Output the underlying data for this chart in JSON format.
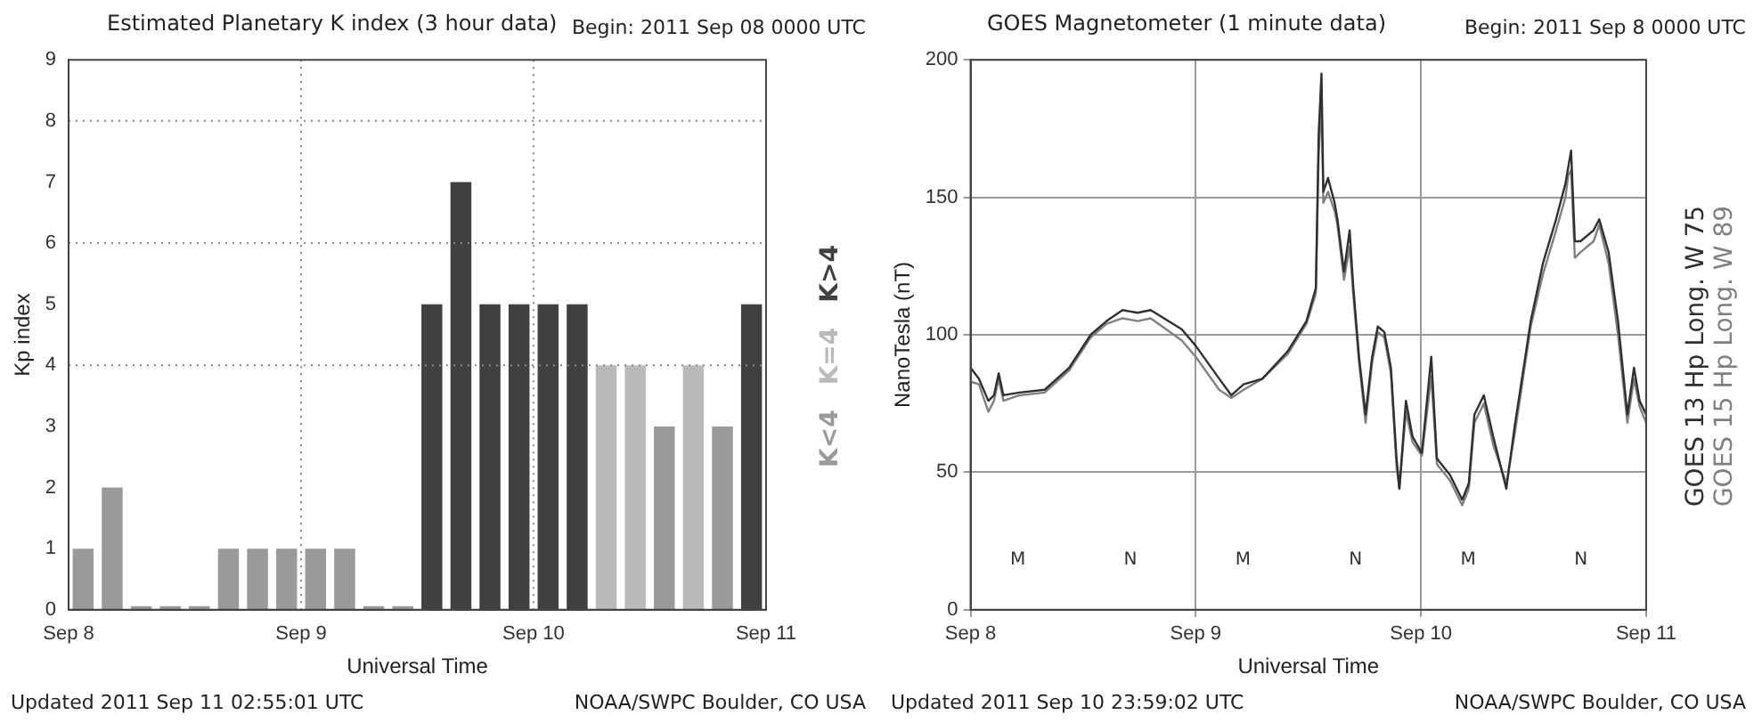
{
  "chart_data": [
    {
      "type": "bar",
      "title": "Estimated Planetary K index (3 hour data)",
      "subtitle": "Begin:  2011 Sep 08 0000 UTC",
      "xlabel": "Universal Time",
      "ylabel": "Kp index",
      "x": [
        "2011-09-08T01:30",
        "2011-09-08T04:30",
        "2011-09-08T07:30",
        "2011-09-08T10:30",
        "2011-09-08T13:30",
        "2011-09-08T16:30",
        "2011-09-08T19:30",
        "2011-09-08T22:30",
        "2011-09-09T01:30",
        "2011-09-09T04:30",
        "2011-09-09T07:30",
        "2011-09-09T10:30",
        "2011-09-09T13:30",
        "2011-09-09T16:30",
        "2011-09-09T19:30",
        "2011-09-09T22:30",
        "2011-09-10T01:30",
        "2011-09-10T04:30",
        "2011-09-10T07:30",
        "2011-09-10T10:30",
        "2011-09-10T13:30",
        "2011-09-10T16:30",
        "2011-09-10T19:30",
        "2011-09-10T22:30"
      ],
      "series": [
        {
          "name": "K<4",
          "color": "#9a9a9a",
          "values": [
            1,
            2,
            0,
            0,
            0,
            1,
            1,
            1,
            1,
            1,
            0,
            0,
            null,
            null,
            null,
            null,
            null,
            null,
            null,
            null,
            3,
            null,
            3,
            null
          ]
        },
        {
          "name": "K=4",
          "color": "#bababa",
          "values": [
            null,
            null,
            null,
            null,
            null,
            null,
            null,
            null,
            null,
            null,
            null,
            null,
            null,
            null,
            null,
            null,
            null,
            null,
            4,
            4,
            null,
            4,
            null,
            null
          ]
        },
        {
          "name": "K>4",
          "color": "#404040",
          "values": [
            null,
            null,
            null,
            null,
            null,
            null,
            null,
            null,
            null,
            null,
            null,
            null,
            5,
            7,
            5,
            5,
            5,
            5,
            null,
            null,
            null,
            null,
            null,
            5
          ]
        }
      ],
      "xlim": [
        "2011-09-08",
        "2011-09-11"
      ],
      "xticks": [
        {
          "value": "2011-09-08",
          "label": "Sep 8"
        },
        {
          "value": "2011-09-09",
          "label": "Sep 9"
        },
        {
          "value": "2011-09-10",
          "label": "Sep 10"
        },
        {
          "value": "2011-09-11",
          "label": "Sep 11"
        }
      ],
      "ylim": [
        0,
        9
      ],
      "yticks": [
        0,
        1,
        2,
        3,
        4,
        5,
        6,
        7,
        8,
        9
      ],
      "legend": "right",
      "ref_lines": [
        {
          "axis": "y",
          "value": 4,
          "color": "#888888",
          "line_style": "dotted"
        },
        {
          "axis": "y",
          "value": 6,
          "color": "#888888",
          "line_style": "dotted"
        },
        {
          "axis": "y",
          "value": 8,
          "color": "#888888",
          "line_style": "dotted"
        },
        {
          "axis": "x",
          "value": "2011-09-09",
          "color": "#888888",
          "line_style": "dotted"
        },
        {
          "axis": "x",
          "value": "2011-09-10",
          "color": "#888888",
          "line_style": "dotted"
        }
      ],
      "annotations": [
        "Updated 2011 Sep 11 02:55:01 UTC",
        "NOAA/SWPC Boulder, CO USA"
      ]
    },
    {
      "type": "line",
      "title": "GOES Magnetometer (1 minute data)",
      "subtitle": "Begin:  2011 Sep 8 0000 UTC",
      "xlabel": "Universal Time",
      "ylabel": "NanoTesla (nT)",
      "x": [
        "2011-09-08T00:00",
        "2011-09-08T00:54",
        "2011-09-08T01:54",
        "2011-09-08T02:30",
        "2011-09-08T03:00",
        "2011-09-08T03:30",
        "2011-09-08T05:12",
        "2011-09-08T07:54",
        "2011-09-08T10:30",
        "2011-09-08T12:48",
        "2011-09-08T14:30",
        "2011-09-08T16:12",
        "2011-09-08T17:48",
        "2011-09-08T19:12",
        "2011-09-08T22:30",
        "2011-09-09T00:00",
        "2011-09-09T02:30",
        "2011-09-09T03:48",
        "2011-09-09T05:06",
        "2011-09-09T07:06",
        "2011-09-09T09:48",
        "2011-09-09T11:48",
        "2011-09-09T12:48",
        "2011-09-09T13:06",
        "2011-09-09T13:24",
        "2011-09-09T13:36",
        "2011-09-09T14:06",
        "2011-09-09T14:48",
        "2011-09-09T15:06",
        "2011-09-09T15:48",
        "2011-09-09T16:24",
        "2011-09-09T16:48",
        "2011-09-09T17:24",
        "2011-09-09T18:06",
        "2011-09-09T18:48",
        "2011-09-09T19:24",
        "2011-09-09T20:06",
        "2011-09-09T20:48",
        "2011-09-09T21:24",
        "2011-09-09T21:42",
        "2011-09-09T22:24",
        "2011-09-09T23:06",
        "2011-09-10T00:06",
        "2011-09-10T01:06",
        "2011-09-10T01:42",
        "2011-09-10T03:06",
        "2011-09-10T04:24",
        "2011-09-10T05:06",
        "2011-09-10T05:42",
        "2011-09-10T06:42",
        "2011-09-10T07:42",
        "2011-09-10T09:06",
        "2011-09-10T10:00",
        "2011-09-10T11:42",
        "2011-09-10T13:00",
        "2011-09-10T14:24",
        "2011-09-10T15:24",
        "2011-09-10T15:42",
        "2011-09-10T16:00",
        "2011-09-10T16:24",
        "2011-09-10T17:00",
        "2011-09-10T18:24",
        "2011-09-10T19:00",
        "2011-09-10T20:00",
        "2011-09-10T21:00",
        "2011-09-10T22:00",
        "2011-09-10T22:42",
        "2011-09-10T23:18",
        "2011-09-11T00:00"
      ],
      "series": [
        {
          "name": "GOES 13 Hp  Long. W 75",
          "color": "#303030",
          "values": [
            88,
            84,
            76,
            78,
            86,
            78,
            79,
            80,
            88,
            100,
            105,
            109,
            108,
            109,
            102,
            96,
            84,
            78,
            82,
            84,
            94,
            105,
            117,
            173,
            195,
            152,
            157,
            148,
            142,
            123,
            138,
            117,
            92,
            71,
            92,
            103,
            101,
            88,
            55,
            44,
            76,
            63,
            57,
            92,
            55,
            49,
            40,
            46,
            71,
            78,
            63,
            44,
            67,
            105,
            126,
            142,
            155,
            161,
            167,
            134,
            134,
            138,
            142,
            130,
            105,
            71,
            88,
            76,
            71
          ]
        },
        {
          "name": "GOES 15 Hp  Long. W 89",
          "color": "#808080",
          "values": [
            83,
            82,
            72,
            76,
            84,
            76,
            78,
            79,
            87,
            99,
            104,
            106,
            105,
            106,
            98,
            92,
            80,
            77,
            80,
            84,
            93,
            104,
            115,
            165,
            185,
            148,
            152,
            145,
            140,
            120,
            132,
            114,
            90,
            68,
            90,
            101,
            99,
            86,
            52,
            44,
            72,
            61,
            56,
            85,
            53,
            47,
            38,
            44,
            68,
            75,
            60,
            46,
            64,
            103,
            122,
            138,
            150,
            158,
            160,
            128,
            130,
            134,
            140,
            126,
            100,
            68,
            84,
            74,
            68
          ]
        }
      ],
      "xlim": [
        "2011-09-08",
        "2011-09-11"
      ],
      "xticks": [
        {
          "value": "2011-09-08",
          "label": "Sep 8"
        },
        {
          "value": "2011-09-09",
          "label": "Sep 9"
        },
        {
          "value": "2011-09-10",
          "label": "Sep 10"
        },
        {
          "value": "2011-09-11",
          "label": "Sep 11"
        }
      ],
      "ylim": [
        0,
        200
      ],
      "yticks": [
        0,
        50,
        100,
        150,
        200
      ],
      "grid": true,
      "legend": "right",
      "marker": "none",
      "line_style": "solid",
      "annotations": [
        "Updated 2011 Sep 10 23:59:02 UTC",
        "NOAA/SWPC Boulder, CO USA",
        "M",
        "N",
        "M",
        "N",
        "M",
        "N"
      ]
    }
  ]
}
